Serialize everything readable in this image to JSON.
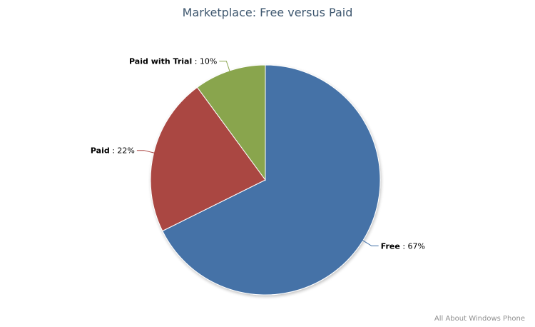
{
  "chart_data": {
    "type": "pie",
    "title": "Marketplace: Free versus Paid",
    "slices": [
      {
        "name": "Free",
        "value": 67,
        "label_value": "67%",
        "color": "#4572a7"
      },
      {
        "name": "Paid",
        "value": 22,
        "label_value": "22%",
        "color": "#aa4643"
      },
      {
        "name": "Paid with Trial",
        "value": 10,
        "label_value": "10%",
        "color": "#89a54e"
      }
    ],
    "start_angle_deg": 0,
    "direction": "clockwise",
    "legend": "none",
    "credits": "All About Windows Phone"
  }
}
